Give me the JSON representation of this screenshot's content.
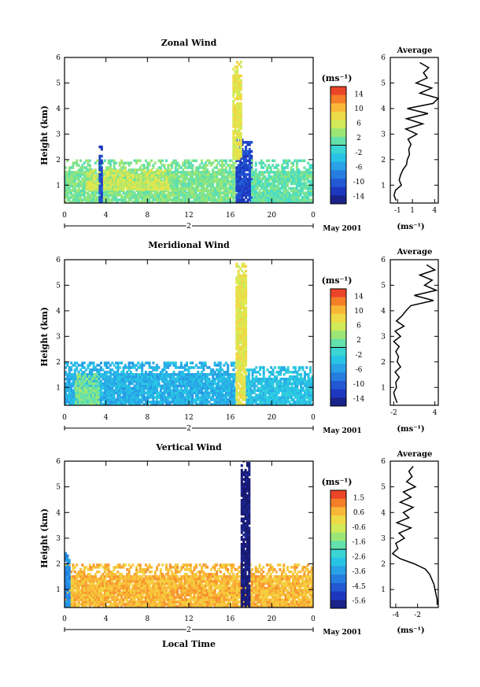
{
  "panels": [
    {
      "title": "Zonal Wind",
      "ylabel": "Height (km)",
      "yticks": [
        "1",
        "2",
        "3",
        "4",
        "5",
        "6"
      ],
      "xticks": [
        "0",
        "4",
        "8",
        "12",
        "16",
        "20",
        "0"
      ],
      "day_labels": [
        "2"
      ],
      "date_label": "May 2001",
      "colorbar_unit": "(ms⁻¹)",
      "colorbar_ticks": [
        "14",
        "10",
        "6",
        "2",
        "-2",
        "-6",
        "-10",
        "-14"
      ],
      "avg_title": "Average",
      "avg_xticks": [
        "-1",
        "1",
        "4"
      ],
      "avg_xlabel": "(ms⁻¹)"
    },
    {
      "title": "Meridional Wind",
      "ylabel": "Height (km)",
      "yticks": [
        "1",
        "2",
        "3",
        "4",
        "5",
        "6"
      ],
      "xticks": [
        "0",
        "4",
        "8",
        "12",
        "16",
        "20",
        "0"
      ],
      "day_labels": [
        "2"
      ],
      "date_label": "May 2001",
      "colorbar_unit": "(ms⁻¹)",
      "colorbar_ticks": [
        "14",
        "10",
        "6",
        "2",
        "-2",
        "-6",
        "-10",
        "-14"
      ],
      "avg_title": "Average",
      "avg_xticks": [
        "-2",
        "4"
      ],
      "avg_xlabel": "(ms⁻¹)"
    },
    {
      "title": "Vertical Wind",
      "ylabel": "Height (km)",
      "yticks": [
        "1",
        "2",
        "3",
        "4",
        "5",
        "6"
      ],
      "xticks": [
        "0",
        "4",
        "8",
        "12",
        "16",
        "20",
        "0"
      ],
      "day_labels": [
        "2"
      ],
      "date_label": "May 2001",
      "colorbar_unit": "(ms⁻¹)",
      "colorbar_ticks": [
        "1.5",
        "0.6",
        "-0.6",
        "-1.6",
        "-2.6",
        "-3.6",
        "-4.5",
        "-5.6"
      ],
      "avg_title": "Average",
      "avg_xticks": [
        "-4",
        "-2"
      ],
      "avg_xlabel": "(ms⁻¹)"
    }
  ],
  "bottom_xlabel": "Local Time",
  "chart_data": [
    {
      "type": "heatmap",
      "title": "Zonal Wind",
      "ylabel": "Height (km)",
      "x_range_hours": [
        0,
        24
      ],
      "ylim": [
        0.3,
        6
      ],
      "color_range": [
        -14,
        14
      ],
      "regions": [
        {
          "x": [
            0,
            16.5
          ],
          "y": [
            0.3,
            2.0
          ],
          "value": 2
        },
        {
          "x": [
            2,
            10
          ],
          "y": [
            0.8,
            1.6
          ],
          "value": 5
        },
        {
          "x": [
            16.5,
            18
          ],
          "y": [
            0.3,
            2.8
          ],
          "value": -10
        },
        {
          "x": [
            16.2,
            17
          ],
          "y": [
            2,
            5.8
          ],
          "value": 6
        },
        {
          "x": [
            18,
            24
          ],
          "y": [
            0.3,
            2.0
          ],
          "value": 1
        },
        {
          "x": [
            3.3,
            3.5
          ],
          "y": [
            0.3,
            2.5
          ],
          "value": -10
        }
      ],
      "average_profile": {
        "height_km": [
          0.4,
          0.6,
          0.8,
          1.0,
          1.2,
          1.4,
          1.6,
          1.8,
          2.0,
          2.2,
          2.4,
          2.6,
          2.8,
          3.0,
          3.2,
          3.4,
          3.6,
          3.8,
          4.0,
          4.2,
          4.4,
          4.6,
          4.8,
          5.0,
          5.2,
          5.4,
          5.6,
          5.8
        ],
        "value": [
          -1.2,
          -1.5,
          -1.3,
          -0.5,
          -0.8,
          -0.6,
          -0.3,
          0.2,
          0.3,
          0.6,
          0.5,
          0.8,
          0.4,
          1.6,
          0.1,
          2.4,
          0.2,
          3.1,
          0.3,
          3.8,
          4.5,
          2.0,
          3.6,
          1.5,
          3.0,
          2.5,
          3.2,
          2.0
        ],
        "xlim": [
          -2,
          4.5
        ]
      }
    },
    {
      "type": "heatmap",
      "title": "Meridional Wind",
      "ylabel": "Height (km)",
      "x_range_hours": [
        0,
        24
      ],
      "ylim": [
        0.3,
        6
      ],
      "color_range": [
        -14,
        14
      ],
      "regions": [
        {
          "x": [
            0,
            16.5
          ],
          "y": [
            0.3,
            2.0
          ],
          "value": -4
        },
        {
          "x": [
            1,
            3.3
          ],
          "y": [
            0.3,
            1.5
          ],
          "value": 2
        },
        {
          "x": [
            16.5,
            17.5
          ],
          "y": [
            0.3,
            5.8
          ],
          "value": 6
        },
        {
          "x": [
            17.5,
            24
          ],
          "y": [
            0.3,
            1.8
          ],
          "value": -3
        }
      ],
      "average_profile": {
        "height_km": [
          0.4,
          0.6,
          0.8,
          1.0,
          1.2,
          1.4,
          1.6,
          1.8,
          2.0,
          2.2,
          2.4,
          2.6,
          2.8,
          3.0,
          3.2,
          3.4,
          3.6,
          3.8,
          4.0,
          4.2,
          4.4,
          4.6,
          4.8,
          5.0,
          5.2,
          5.4,
          5.6,
          5.8
        ],
        "value": [
          -1.5,
          -1.8,
          -2.0,
          -1.6,
          -1.7,
          -1.2,
          -1.8,
          -1.0,
          -1.5,
          -1.3,
          -1.7,
          -1.2,
          -2.0,
          -1.0,
          -1.8,
          -0.5,
          -1.6,
          -0.8,
          -0.2,
          0.5,
          3.8,
          1.0,
          4.2,
          2.5,
          3.6,
          1.8,
          4.0,
          2.8
        ],
        "xlim": [
          -2.5,
          4.5
        ]
      }
    },
    {
      "type": "heatmap",
      "title": "Vertical Wind",
      "ylabel": "Height (km)",
      "x_range_hours": [
        0,
        24
      ],
      "ylim": [
        0.3,
        6
      ],
      "color_range": [
        -5.6,
        1.5
      ],
      "regions": [
        {
          "x": [
            0,
            24
          ],
          "y": [
            0.3,
            2.0
          ],
          "value": 0.2
        },
        {
          "x": [
            17,
            17.8
          ],
          "y": [
            0.3,
            6
          ],
          "value": -5.6
        },
        {
          "x": [
            0,
            0.5
          ],
          "y": [
            0.3,
            2.4
          ],
          "value": -3.6
        }
      ],
      "average_profile": {
        "height_km": [
          0.4,
          0.6,
          0.8,
          1.0,
          1.2,
          1.4,
          1.6,
          1.8,
          2.0,
          2.2,
          2.4,
          2.6,
          2.8,
          3.0,
          3.2,
          3.4,
          3.6,
          3.8,
          4.0,
          4.2,
          4.4,
          4.6,
          4.8,
          5.0,
          5.2,
          5.4,
          5.6,
          5.8
        ],
        "value": [
          -0.2,
          -0.2,
          -0.3,
          -0.4,
          -0.5,
          -0.7,
          -0.9,
          -1.3,
          -2.3,
          -3.6,
          -4.3,
          -3.8,
          -4.0,
          -3.2,
          -3.7,
          -2.6,
          -3.9,
          -2.8,
          -3.3,
          -2.4,
          -3.6,
          -2.6,
          -3.3,
          -2.2,
          -3.0,
          -2.5,
          -2.8,
          -2.4
        ],
        "xlim": [
          -4.5,
          -0.1
        ]
      }
    }
  ]
}
